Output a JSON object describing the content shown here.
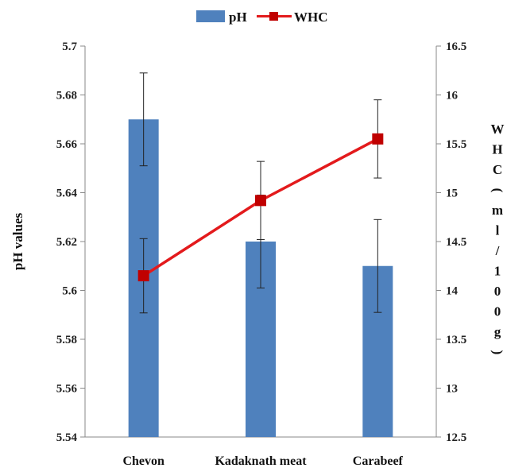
{
  "chart_data": {
    "type": "bar+line",
    "categories": [
      "Chevon",
      "Kadaknath meat",
      "Carabeef"
    ],
    "series": [
      {
        "name": "pH",
        "kind": "bar",
        "axis": "left",
        "color": "#4f81bd",
        "values": [
          5.67,
          5.62,
          5.61
        ],
        "error": [
          0.019,
          0.019,
          0.019
        ]
      },
      {
        "name": "WHC",
        "kind": "line",
        "axis": "right",
        "color": "#e31a1c",
        "values": [
          14.15,
          14.92,
          15.55
        ],
        "error": [
          0.38,
          0.4,
          0.4
        ]
      }
    ],
    "ylabel": "pH values",
    "y2label": "WHC (ml/100g)",
    "ylim": [
      5.54,
      5.7
    ],
    "y2lim": [
      12.5,
      16.5
    ],
    "yticks": [
      "5.54",
      "5.56",
      "5.58",
      "5.6",
      "5.62",
      "5.64",
      "5.66",
      "5.68",
      "5.7"
    ],
    "y2ticks": [
      "12.5",
      "13",
      "13.5",
      "14",
      "14.5",
      "15",
      "15.5",
      "16",
      "16.5"
    ],
    "grid": false,
    "legend": "top-center"
  }
}
